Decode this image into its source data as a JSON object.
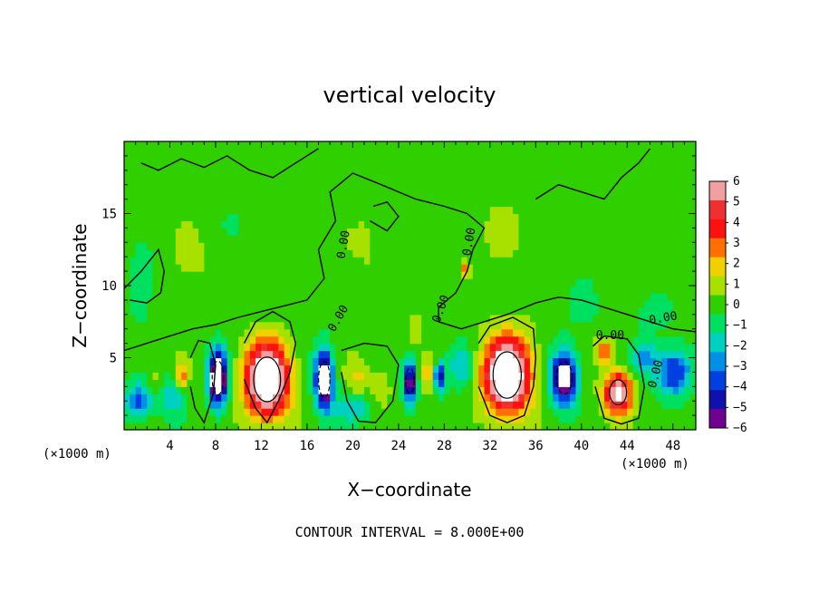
{
  "chart_data": {
    "type": "heatmap",
    "title": "vertical velocity",
    "xlabel": "X−coordinate",
    "ylabel": "Z−coordinate",
    "x_unit": "(×1000 m)",
    "xlim": [
      0,
      50
    ],
    "ylim": [
      0,
      20
    ],
    "x_ticks": [
      4,
      8,
      12,
      16,
      20,
      24,
      28,
      32,
      36,
      40,
      44,
      48
    ],
    "x_tick_labels": [
      "4",
      "8",
      "12",
      "16",
      "20",
      "24",
      "28",
      "32",
      "36",
      "40",
      "44",
      "48"
    ],
    "y_ticks": [
      5,
      10,
      15
    ],
    "y_tick_labels": [
      "5",
      "10",
      "15"
    ],
    "colorbar": {
      "levels": [
        "6",
        "5",
        "4",
        "3",
        "2",
        "1",
        "0",
        "−1",
        "−2",
        "−3",
        "−4",
        "−5",
        "−6"
      ],
      "range": [
        -6,
        6
      ],
      "colors": [
        "#f0a0a0",
        "#f03030",
        "#ff1010",
        "#ff7000",
        "#f0d000",
        "#a8e000",
        "#30d000",
        "#00e060",
        "#00d0c0",
        "#0090e8",
        "#0040e0",
        "#1010b0",
        "#700090"
      ]
    },
    "contour_labels": [
      "0.00",
      "0.00",
      "0.00",
      "0.00",
      "0.00",
      "0.00",
      "0.00"
    ],
    "contour_interval_text": "CONTOUR INTERVAL = 8.000E+00",
    "features": [
      {
        "x": 12.5,
        "z": 3.5,
        "sx": 1.9,
        "sz": 2.5,
        "w": 9.0
      },
      {
        "x": 33.5,
        "z": 3.8,
        "sx": 2.0,
        "sz": 2.6,
        "w": 9.0
      },
      {
        "x": 43.2,
        "z": 2.6,
        "sx": 1.2,
        "sz": 1.4,
        "w": 7.0
      },
      {
        "x": 42.0,
        "z": 5.5,
        "sx": 0.8,
        "sz": 0.9,
        "w": 3.0
      },
      {
        "x": 5.0,
        "z": 3.8,
        "sx": 0.6,
        "sz": 1.0,
        "w": 3.0
      },
      {
        "x": 20.5,
        "z": 3.5,
        "sx": 1.0,
        "sz": 1.5,
        "w": 1.5
      },
      {
        "x": 22.5,
        "z": 3.0,
        "sx": 0.8,
        "sz": 1.2,
        "w": 1.5
      },
      {
        "x": 26.5,
        "z": 4.0,
        "sx": 0.7,
        "sz": 1.2,
        "w": 1.8
      },
      {
        "x": 29.8,
        "z": 11.2,
        "sx": 0.4,
        "sz": 0.6,
        "w": 2.5
      },
      {
        "x": 25.5,
        "z": 7.0,
        "sx": 0.5,
        "sz": 1.0,
        "w": 1.5
      },
      {
        "x": 3.0,
        "z": 3.5,
        "sx": 0.8,
        "sz": 1.2,
        "w": 1.5
      },
      {
        "x": 8.2,
        "z": 3.6,
        "sx": 0.8,
        "sz": 1.9,
        "w": -8.5
      },
      {
        "x": 17.5,
        "z": 3.5,
        "sx": 0.8,
        "sz": 2.0,
        "w": -8.0
      },
      {
        "x": 25.0,
        "z": 3.4,
        "sx": 0.6,
        "sz": 1.4,
        "w": -6.5
      },
      {
        "x": 27.6,
        "z": 3.7,
        "sx": 0.5,
        "sz": 1.0,
        "w": -5.0
      },
      {
        "x": 38.5,
        "z": 3.6,
        "sx": 1.1,
        "sz": 1.8,
        "w": -7.5
      },
      {
        "x": 48.0,
        "z": 4.0,
        "sx": 1.5,
        "sz": 1.6,
        "w": -4.5
      },
      {
        "x": 1.2,
        "z": 2.0,
        "sx": 1.2,
        "sz": 1.2,
        "w": -3.5
      },
      {
        "x": 4.0,
        "z": 2.5,
        "sx": 1.2,
        "sz": 1.5,
        "w": -2.5
      },
      {
        "x": 20.0,
        "z": 1.6,
        "sx": 1.5,
        "sz": 1.0,
        "w": -2.5
      },
      {
        "x": 29.5,
        "z": 4.5,
        "sx": 1.0,
        "sz": 1.5,
        "w": -2.2
      },
      {
        "x": 45.5,
        "z": 5.0,
        "sx": 1.0,
        "sz": 1.2,
        "w": -3.0
      },
      {
        "x": 1.5,
        "z": 9.5,
        "sx": 1.5,
        "sz": 3.0,
        "w": -1.0
      },
      {
        "x": 6.0,
        "z": 12.0,
        "sx": 2.0,
        "sz": 3.0,
        "w": 0.6
      },
      {
        "x": 21.5,
        "z": 13.0,
        "sx": 2.0,
        "sz": 3.0,
        "w": 0.6
      },
      {
        "x": 33.0,
        "z": 14.0,
        "sx": 3.0,
        "sz": 4.0,
        "w": 0.5
      },
      {
        "x": 10.0,
        "z": 15.0,
        "sx": 3.0,
        "sz": 3.0,
        "w": -0.4
      },
      {
        "x": 40.0,
        "z": 9.0,
        "sx": 3.0,
        "sz": 3.0,
        "w": -0.4
      },
      {
        "x": 46.0,
        "z": 8.0,
        "sx": 2.0,
        "sz": 1.5,
        "w": -0.6
      }
    ],
    "zero_contours": [
      [
        [
          0,
          5.5
        ],
        [
          2,
          6.0
        ],
        [
          4,
          6.5
        ],
        [
          6,
          7.0
        ],
        [
          8,
          7.3
        ],
        [
          10,
          7.8
        ],
        [
          12,
          8.2
        ],
        [
          14,
          8.6
        ],
        [
          16,
          9.0
        ],
        [
          17.5,
          10.5
        ],
        [
          17.0,
          12.5
        ],
        [
          18.5,
          14.5
        ],
        [
          18.0,
          16.5
        ],
        [
          20.0,
          17.8
        ],
        [
          22.5,
          17.0
        ],
        [
          25.5,
          16.0
        ],
        [
          28.0,
          15.5
        ],
        [
          30.0,
          15.0
        ],
        [
          31.5,
          14.0
        ],
        [
          30.5,
          12.5
        ],
        [
          30.0,
          11.0
        ],
        [
          29.0,
          9.5
        ],
        [
          27.5,
          8.5
        ],
        [
          27.5,
          7.5
        ],
        [
          29.5,
          7.0
        ],
        [
          31.5,
          7.5
        ],
        [
          33.5,
          8.0
        ],
        [
          36.0,
          8.8
        ],
        [
          38.0,
          9.2
        ],
        [
          40.0,
          9.0
        ],
        [
          42.0,
          8.5
        ],
        [
          44.0,
          8.0
        ],
        [
          46.0,
          7.5
        ],
        [
          48.0,
          7.0
        ],
        [
          50.0,
          6.8
        ]
      ],
      [
        [
          0,
          9.8
        ],
        [
          1.5,
          11.0
        ],
        [
          3.0,
          12.5
        ],
        [
          3.5,
          11.0
        ],
        [
          3.2,
          9.5
        ],
        [
          2.0,
          8.8
        ],
        [
          0.5,
          9.0
        ]
      ],
      [
        [
          21.5,
          14.5
        ],
        [
          23.0,
          13.8
        ],
        [
          24.0,
          14.8
        ],
        [
          23.0,
          15.8
        ],
        [
          21.8,
          15.5
        ]
      ],
      [
        [
          1.5,
          18.5
        ],
        [
          3.0,
          18.0
        ],
        [
          5.0,
          18.8
        ],
        [
          7.0,
          18.2
        ],
        [
          9.0,
          19.0
        ],
        [
          11.0,
          18.0
        ],
        [
          13.0,
          17.5
        ],
        [
          15.0,
          18.5
        ],
        [
          17.0,
          19.5
        ]
      ],
      [
        [
          36.0,
          16.0
        ],
        [
          38.0,
          17.0
        ],
        [
          40.0,
          16.5
        ],
        [
          42.0,
          16.0
        ],
        [
          43.5,
          17.5
        ],
        [
          45.0,
          18.5
        ],
        [
          46.0,
          19.5
        ]
      ],
      [
        [
          10.5,
          6.0
        ],
        [
          11.5,
          7.5
        ],
        [
          13.0,
          8.2
        ],
        [
          14.5,
          7.5
        ],
        [
          15.0,
          6.0
        ],
        [
          14.5,
          4.0
        ],
        [
          13.5,
          2.0
        ],
        [
          12.5,
          0.5
        ],
        [
          11.5,
          1.5
        ],
        [
          10.5,
          3.5
        ]
      ],
      [
        [
          31.0,
          6.0
        ],
        [
          32.0,
          7.2
        ],
        [
          34.0,
          7.8
        ],
        [
          35.8,
          7.0
        ],
        [
          36.0,
          5.0
        ],
        [
          35.8,
          3.0
        ],
        [
          35.0,
          1.0
        ],
        [
          33.5,
          0.5
        ],
        [
          32.0,
          1.0
        ],
        [
          31.0,
          3.0
        ]
      ],
      [
        [
          5.8,
          5.0
        ],
        [
          6.5,
          6.2
        ],
        [
          7.5,
          6.0
        ],
        [
          8.0,
          4.5
        ],
        [
          7.8,
          2.5
        ],
        [
          7.0,
          0.5
        ],
        [
          6.2,
          1.5
        ],
        [
          5.8,
          3.0
        ]
      ],
      [
        [
          19.0,
          5.5
        ],
        [
          21.0,
          6.0
        ],
        [
          23.0,
          5.8
        ],
        [
          24.0,
          4.5
        ],
        [
          23.5,
          2.0
        ],
        [
          22.0,
          0.5
        ],
        [
          20.5,
          0.6
        ],
        [
          19.5,
          2.0
        ],
        [
          19.0,
          4.0
        ]
      ],
      [
        [
          41.0,
          5.8
        ],
        [
          42.0,
          6.5
        ],
        [
          44.0,
          6.3
        ],
        [
          45.0,
          5.2
        ],
        [
          45.5,
          3.0
        ],
        [
          45.0,
          0.8
        ],
        [
          43.5,
          0.4
        ],
        [
          42.0,
          0.8
        ],
        [
          41.2,
          3.0
        ]
      ]
    ]
  }
}
